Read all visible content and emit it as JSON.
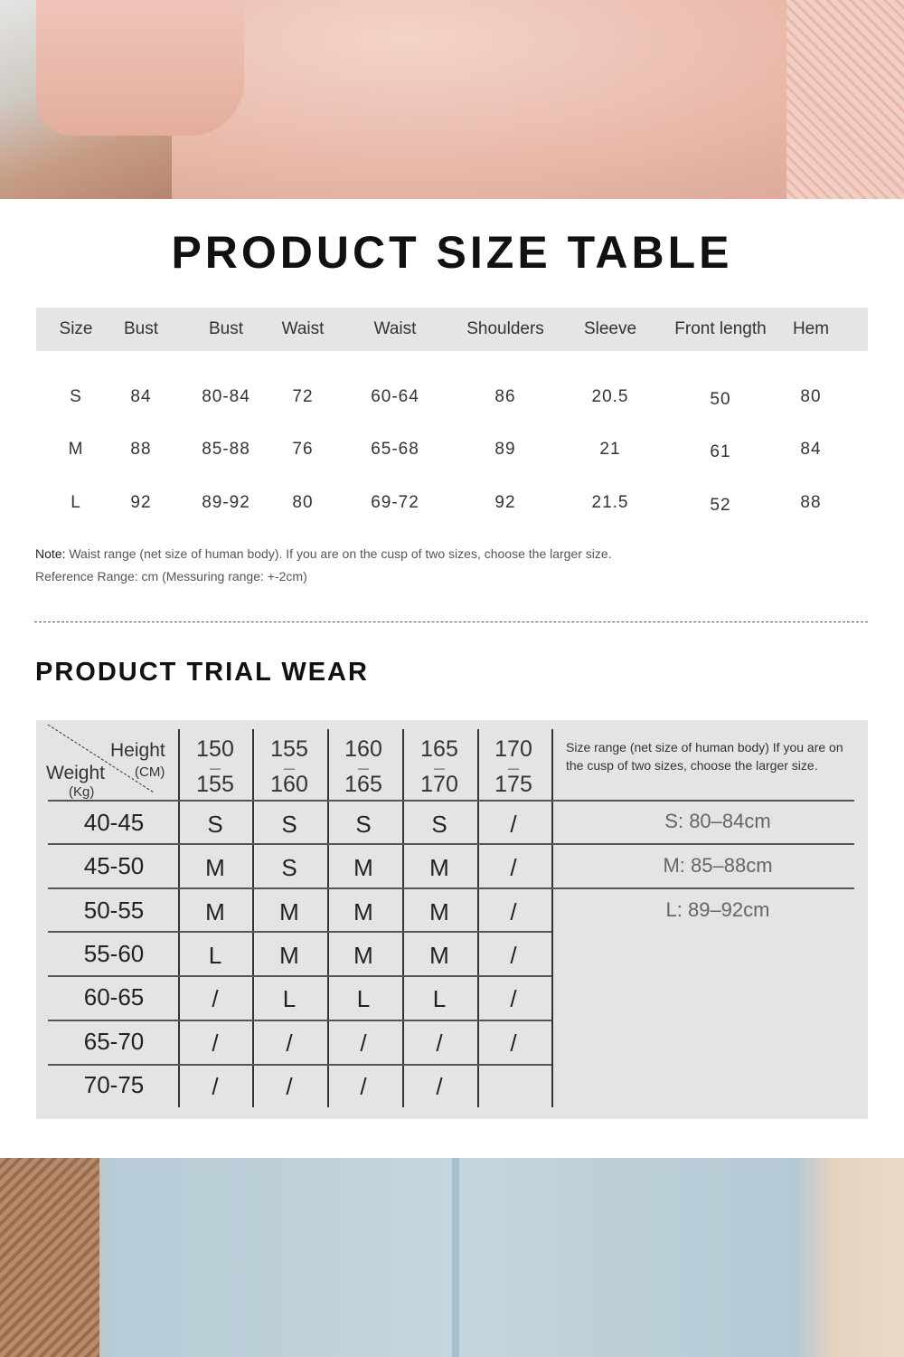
{
  "size_table": {
    "title": "PRODUCT SIZE TABLE",
    "headers": [
      "Size",
      "Bust",
      "Bust",
      "Waist",
      "Waist",
      "Shoulders",
      "Sleeve",
      "Front length",
      "Hem"
    ],
    "rows": [
      [
        "S",
        "84",
        "80-84",
        "72",
        "60-64",
        "86",
        "20.5",
        "50",
        "80"
      ],
      [
        "M",
        "88",
        "85-88",
        "76",
        "65-68",
        "89",
        "21",
        "61",
        "84"
      ],
      [
        "L",
        "92",
        "89-92",
        "80",
        "69-72",
        "92",
        "21.5",
        "52",
        "88"
      ]
    ],
    "note_label": "Note:",
    "note_text": " Waist range (net size of human body). If you are on the cusp of two sizes, choose the larger size.",
    "reference": "Reference Range: cm (Messuring range: +-2cm)"
  },
  "trial_wear": {
    "title": "PRODUCT TRIAL WEAR",
    "corner": {
      "height": "Height",
      "height_unit": "(CM)",
      "weight": "Weight",
      "weight_unit": "(Kg)"
    },
    "height_ranges": [
      [
        "150",
        "155"
      ],
      [
        "155",
        "160"
      ],
      [
        "160",
        "165"
      ],
      [
        "165",
        "170"
      ],
      [
        "170",
        "175"
      ]
    ],
    "range_sep": "—",
    "rows": [
      {
        "weight": "40-45",
        "sizes": [
          "S",
          "S",
          "S",
          "S",
          "/"
        ]
      },
      {
        "weight": "45-50",
        "sizes": [
          "M",
          "S",
          "M",
          "M",
          "/"
        ]
      },
      {
        "weight": "50-55",
        "sizes": [
          "M",
          "M",
          "M",
          "M",
          "/"
        ]
      },
      {
        "weight": "55-60",
        "sizes": [
          "L",
          "M",
          "M",
          "M",
          "/"
        ]
      },
      {
        "weight": "60-65",
        "sizes": [
          "/",
          "L",
          "L",
          "L",
          "/"
        ]
      },
      {
        "weight": "65-70",
        "sizes": [
          "/",
          "/",
          "/",
          "/",
          "/"
        ]
      },
      {
        "weight": "70-75",
        "sizes": [
          "/",
          "/",
          "/",
          "/",
          ""
        ]
      }
    ],
    "size_range_note": "Size range (net size of human body) If you are on the cusp of two sizes, choose the larger size.",
    "size_ranges": [
      "S: 80–84cm",
      "M: 85–88cm",
      "L: 89–92cm"
    ]
  }
}
